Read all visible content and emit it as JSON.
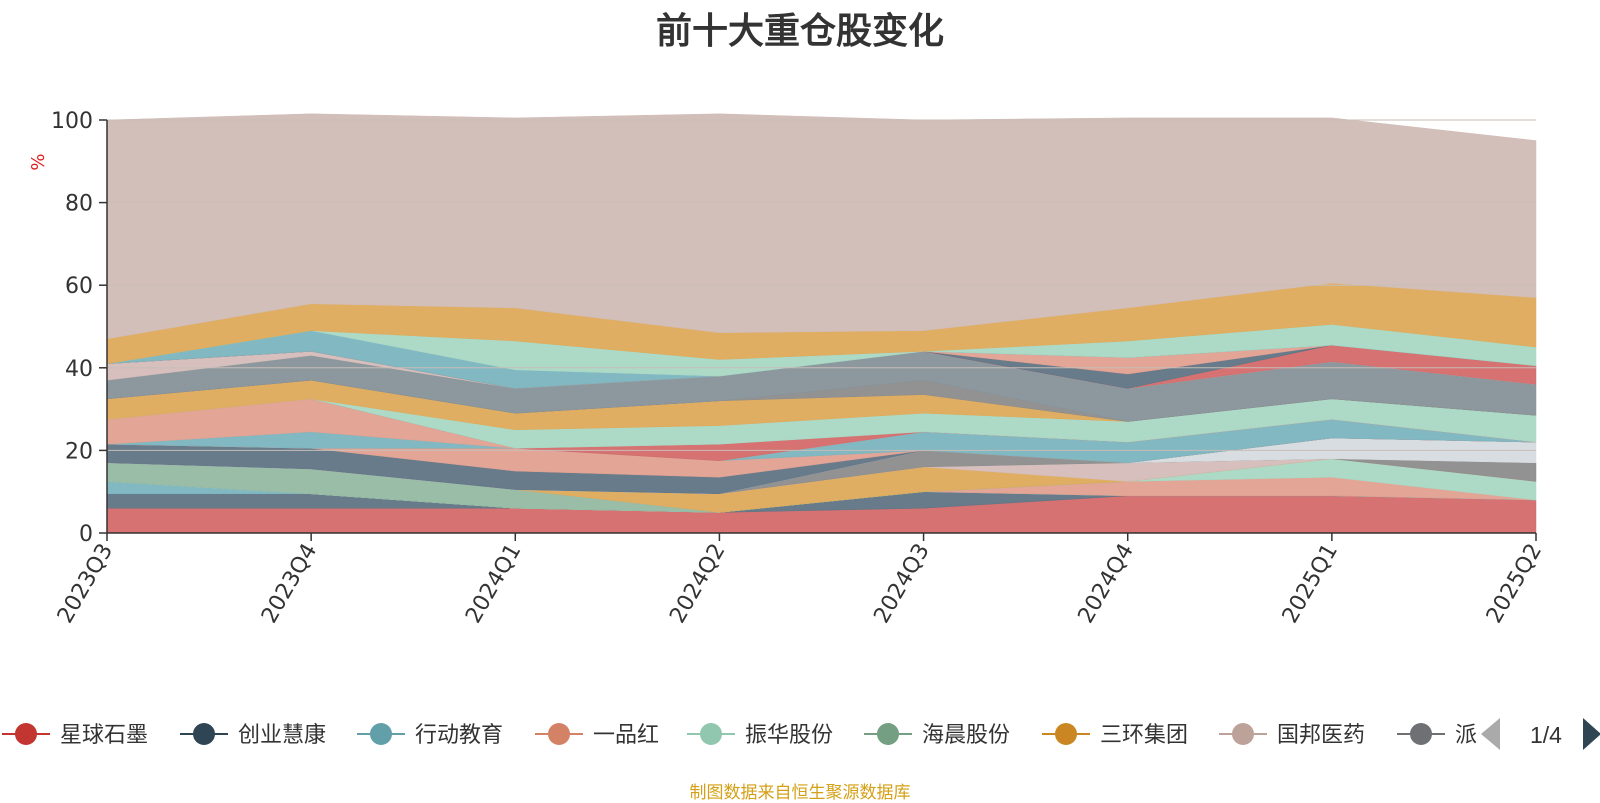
{
  "title": "前十大重仓股变化",
  "source_note": "制图数据来自恒生聚源数据库",
  "colors": {
    "note": "#d4a017",
    "ylabel": "#e02020",
    "axis": "#333333",
    "grid": "#c8bdb7"
  },
  "legend": {
    "page_indicator": "1/4",
    "visible_items": [
      "星球石墨",
      "创业慧康",
      "行动教育",
      "一品红",
      "振华股份",
      "海晨股份",
      "三环集团",
      "国邦医药",
      "派"
    ]
  },
  "chart_data": {
    "type": "area",
    "stacked": true,
    "title": "前十大重仓股变化",
    "ylabel": "%",
    "ylim": [
      0,
      100
    ],
    "yticks": [
      0,
      20,
      40,
      60,
      80,
      100
    ],
    "grid": true,
    "legend_position": "bottom",
    "categories": [
      "2023Q3",
      "2023Q4",
      "2024Q1",
      "2024Q2",
      "2024Q3",
      "2024Q4",
      "2025Q1",
      "2025Q2"
    ],
    "series": [
      {
        "name": "星球石墨",
        "color": "#d46a6a",
        "values": [
          6,
          6,
          6,
          5,
          6,
          9,
          9,
          8
        ]
      },
      {
        "name": "创业慧康",
        "color": "#5f7484",
        "values": [
          3.5,
          3.5,
          0,
          0,
          4,
          0,
          0,
          0
        ]
      },
      {
        "name": "行动教育",
        "color": "#7ab4bf",
        "values": [
          3,
          0,
          0,
          0,
          0,
          0,
          0,
          0
        ]
      },
      {
        "name": "一品红",
        "color": "#e0a090",
        "values": [
          0,
          0,
          0,
          0,
          0,
          3.5,
          4.5,
          0
        ]
      },
      {
        "name": "振华股份",
        "color": "#a8d8c4",
        "values": [
          0,
          0,
          0,
          0,
          0,
          0,
          4.5,
          4.5
        ]
      },
      {
        "name": "海晨股份",
        "color": "#93b9a2",
        "values": [
          4.5,
          6,
          4.5,
          0,
          0,
          0,
          0,
          0
        ]
      },
      {
        "name": "三环集团",
        "color": "#deaa5a",
        "values": [
          0,
          0,
          0,
          4.5,
          6,
          0,
          0,
          0
        ]
      },
      {
        "name": "国邦医药",
        "color": "#d4bcb8",
        "values": [
          0,
          0,
          0,
          0,
          0,
          4.5,
          0,
          0
        ]
      },
      {
        "name": "派",
        "color": "#8c8c8c",
        "values": [
          0,
          0,
          0,
          0,
          4,
          0,
          0,
          4.5
        ]
      },
      {
        "name": "",
        "color": "#d6dbe0",
        "values": [
          0,
          0,
          0,
          0,
          0,
          0,
          5,
          5
        ]
      },
      {
        "name": "",
        "color": "#5f7484",
        "values": [
          4.5,
          5,
          4.5,
          4,
          0,
          0,
          0,
          0
        ]
      },
      {
        "name": "",
        "color": "#e0a090",
        "values": [
          0,
          0,
          5.5,
          4,
          0,
          0,
          0,
          0
        ]
      },
      {
        "name": "",
        "color": "#7ab4bf",
        "values": [
          0,
          4,
          0,
          0,
          4.5,
          5,
          4.5,
          0
        ]
      },
      {
        "name": "",
        "color": "#e0a090",
        "values": [
          6,
          8,
          0,
          0,
          0,
          0,
          0,
          0
        ]
      },
      {
        "name": "",
        "color": "#d46a6a",
        "values": [
          0,
          0,
          0,
          4,
          0,
          0,
          0,
          0
        ]
      },
      {
        "name": "",
        "color": "#a8d8c4",
        "values": [
          0,
          0,
          4.5,
          4.5,
          4.5,
          5,
          5,
          6.5
        ]
      },
      {
        "name": "",
        "color": "#deaa5a",
        "values": [
          5,
          4.5,
          4,
          6,
          4.5,
          0,
          0,
          0
        ]
      },
      {
        "name": "",
        "color": "#8c8c8c",
        "values": [
          0,
          0,
          0,
          0,
          3.5,
          0,
          0,
          0
        ]
      },
      {
        "name": "",
        "color": "#879299",
        "values": [
          4.5,
          6,
          6,
          6,
          7,
          8,
          9,
          7.5
        ]
      },
      {
        "name": "",
        "color": "#d4bcb8",
        "values": [
          4,
          1,
          0,
          0,
          0,
          0,
          0,
          0
        ]
      },
      {
        "name": "",
        "color": "#d46a6a",
        "values": [
          0,
          0,
          0,
          0,
          0,
          0,
          4,
          4.5
        ]
      },
      {
        "name": "",
        "color": "#5f7484",
        "values": [
          0,
          0,
          0,
          0,
          0,
          3.5,
          0,
          0
        ]
      },
      {
        "name": "",
        "color": "#e0a090",
        "values": [
          0,
          0,
          0,
          0,
          0,
          4,
          0,
          0
        ]
      },
      {
        "name": "",
        "color": "#7ab4bf",
        "values": [
          0,
          5,
          4.5,
          0,
          0,
          0,
          0,
          0
        ]
      },
      {
        "name": "",
        "color": "#a8d8c4",
        "values": [
          0,
          0,
          7,
          4,
          0,
          4,
          5,
          4.5
        ]
      },
      {
        "name": "",
        "color": "#deaa5a",
        "values": [
          6,
          6.5,
          8,
          6.5,
          5,
          8,
          10,
          12
        ]
      },
      {
        "name": "",
        "color": "#d1bcb6",
        "values": [
          53,
          46,
          46,
          53,
          51,
          46,
          40,
          38
        ]
      }
    ]
  }
}
